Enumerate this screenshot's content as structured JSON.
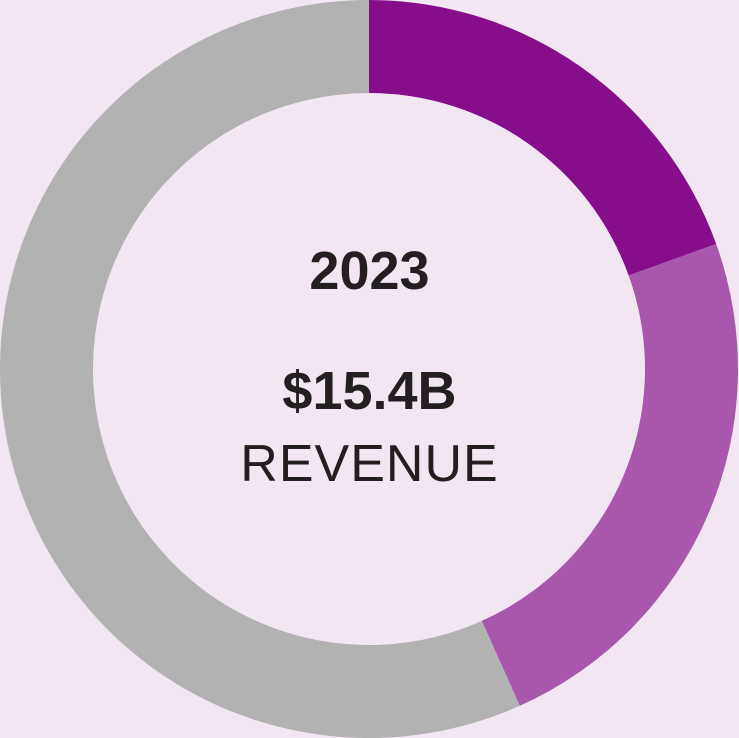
{
  "chart_data": {
    "type": "pie",
    "subtype": "donut",
    "slices": [
      {
        "value": 19.5,
        "color": "#860e8b"
      },
      {
        "value": 23.8,
        "color": "#a957ad"
      },
      {
        "value": 56.7,
        "color": "#b2b2b2"
      }
    ],
    "center": {
      "year": "2023",
      "amount": "$15.4B",
      "metric": "REVENUE"
    }
  },
  "colors": {
    "background": "#f1e6f2",
    "text": "#231f20"
  }
}
